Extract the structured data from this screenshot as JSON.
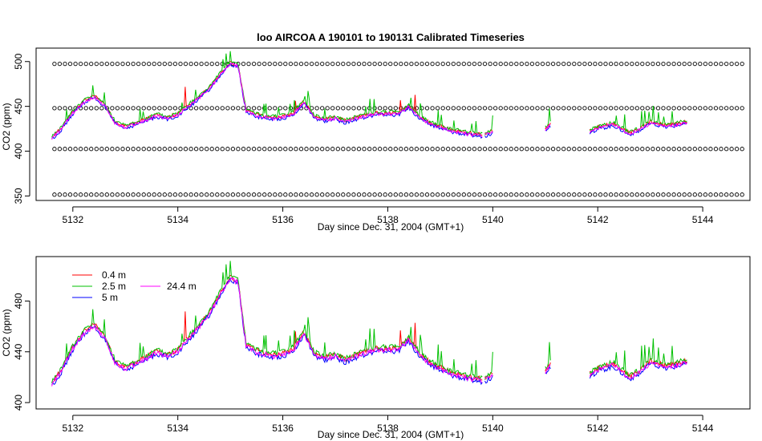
{
  "chart_data": [
    {
      "type": "scatter",
      "title": "loo   AIRCOA  A    190101  to  190131   Calibrated Timeseries",
      "xlabel": "Day since Dec. 31, 2004 (GMT+1)",
      "ylabel": "CO2 (ppm)",
      "xlim": [
        5131.3,
        5144.9
      ],
      "ylim": [
        345,
        515
      ],
      "xticks": [
        "5132",
        "5134",
        "5136",
        "5138",
        "5140",
        "5142",
        "5144"
      ],
      "yticks": [
        "350",
        "400",
        "450",
        "500"
      ],
      "grid": false,
      "series": [
        {
          "style": "points",
          "color": "#000000",
          "x_range": [
            5131.65,
            5144.75
          ],
          "step": 0.1,
          "y": [
            497.5,
            448,
            402.5,
            351.5
          ]
        },
        {
          "style": "line",
          "color": "#ff0000",
          "offset": 0.8
        },
        {
          "style": "line",
          "color": "#00c000",
          "offset": 1.8
        },
        {
          "style": "line",
          "color": "#0000ff",
          "offset": -1.5
        },
        {
          "style": "line",
          "color": "#ff00ff",
          "offset": -0.5
        }
      ]
    },
    {
      "type": "line",
      "title": "",
      "xlabel": "Day since Dec. 31, 2004 (GMT+1)",
      "ylabel": "CO2 (ppm)",
      "xlim": [
        5131.3,
        5144.9
      ],
      "ylim": [
        395,
        515
      ],
      "xticks": [
        "5132",
        "5134",
        "5136",
        "5138",
        "5140",
        "5142",
        "5144"
      ],
      "yticks": [
        "400",
        "440",
        "480"
      ],
      "grid": false,
      "legend_position": "top-left",
      "series": [
        {
          "name": "0.4 m",
          "color": "#ff0000",
          "offset": 0.8
        },
        {
          "name": "2.5 m",
          "color": "#00c000",
          "offset": 1.8
        },
        {
          "name": "5 m",
          "color": "#0000ff",
          "offset": -1.5
        },
        {
          "name": "24.4 m",
          "color": "#ff00ff",
          "offset": -0.5
        }
      ]
    }
  ],
  "base_profile": {
    "x": [
      5131.6,
      5131.75,
      5132.0,
      5132.2,
      5132.4,
      5132.6,
      5132.8,
      5133.0,
      5133.2,
      5133.4,
      5133.6,
      5133.8,
      5134.0,
      5134.2,
      5134.4,
      5134.6,
      5134.8,
      5135.0,
      5135.15,
      5135.3,
      5135.5,
      5135.8,
      5136.0,
      5136.2,
      5136.4,
      5136.6,
      5136.8,
      5137.0,
      5137.2,
      5137.4,
      5137.6,
      5137.8,
      5138.0,
      5138.2,
      5138.4,
      5138.6,
      5138.8,
      5139.0,
      5139.2,
      5139.4,
      5139.6,
      5139.8
    ],
    "y": [
      415,
      423,
      443,
      455,
      461,
      452,
      432,
      427,
      431,
      435,
      440,
      437,
      441,
      450,
      460,
      470,
      485,
      498,
      495,
      445,
      440,
      437,
      438,
      442,
      455,
      438,
      435,
      437,
      433,
      437,
      440,
      442,
      442,
      442,
      450,
      438,
      431,
      427,
      423,
      421,
      419,
      418
    ],
    "segments": [
      {
        "x": [
          5139.85,
          5140.0
        ],
        "y": [
          418,
          422
        ]
      },
      {
        "x": [
          5141.0,
          5141.1
        ],
        "y": [
          425,
          430
        ]
      },
      {
        "x": [
          5141.85,
          5142.0,
          5142.3,
          5142.6,
          5142.8,
          5143.0,
          5143.3,
          5143.7
        ],
        "y": [
          422,
          426,
          430,
          420,
          424,
          432,
          428,
          432
        ]
      }
    ]
  }
}
